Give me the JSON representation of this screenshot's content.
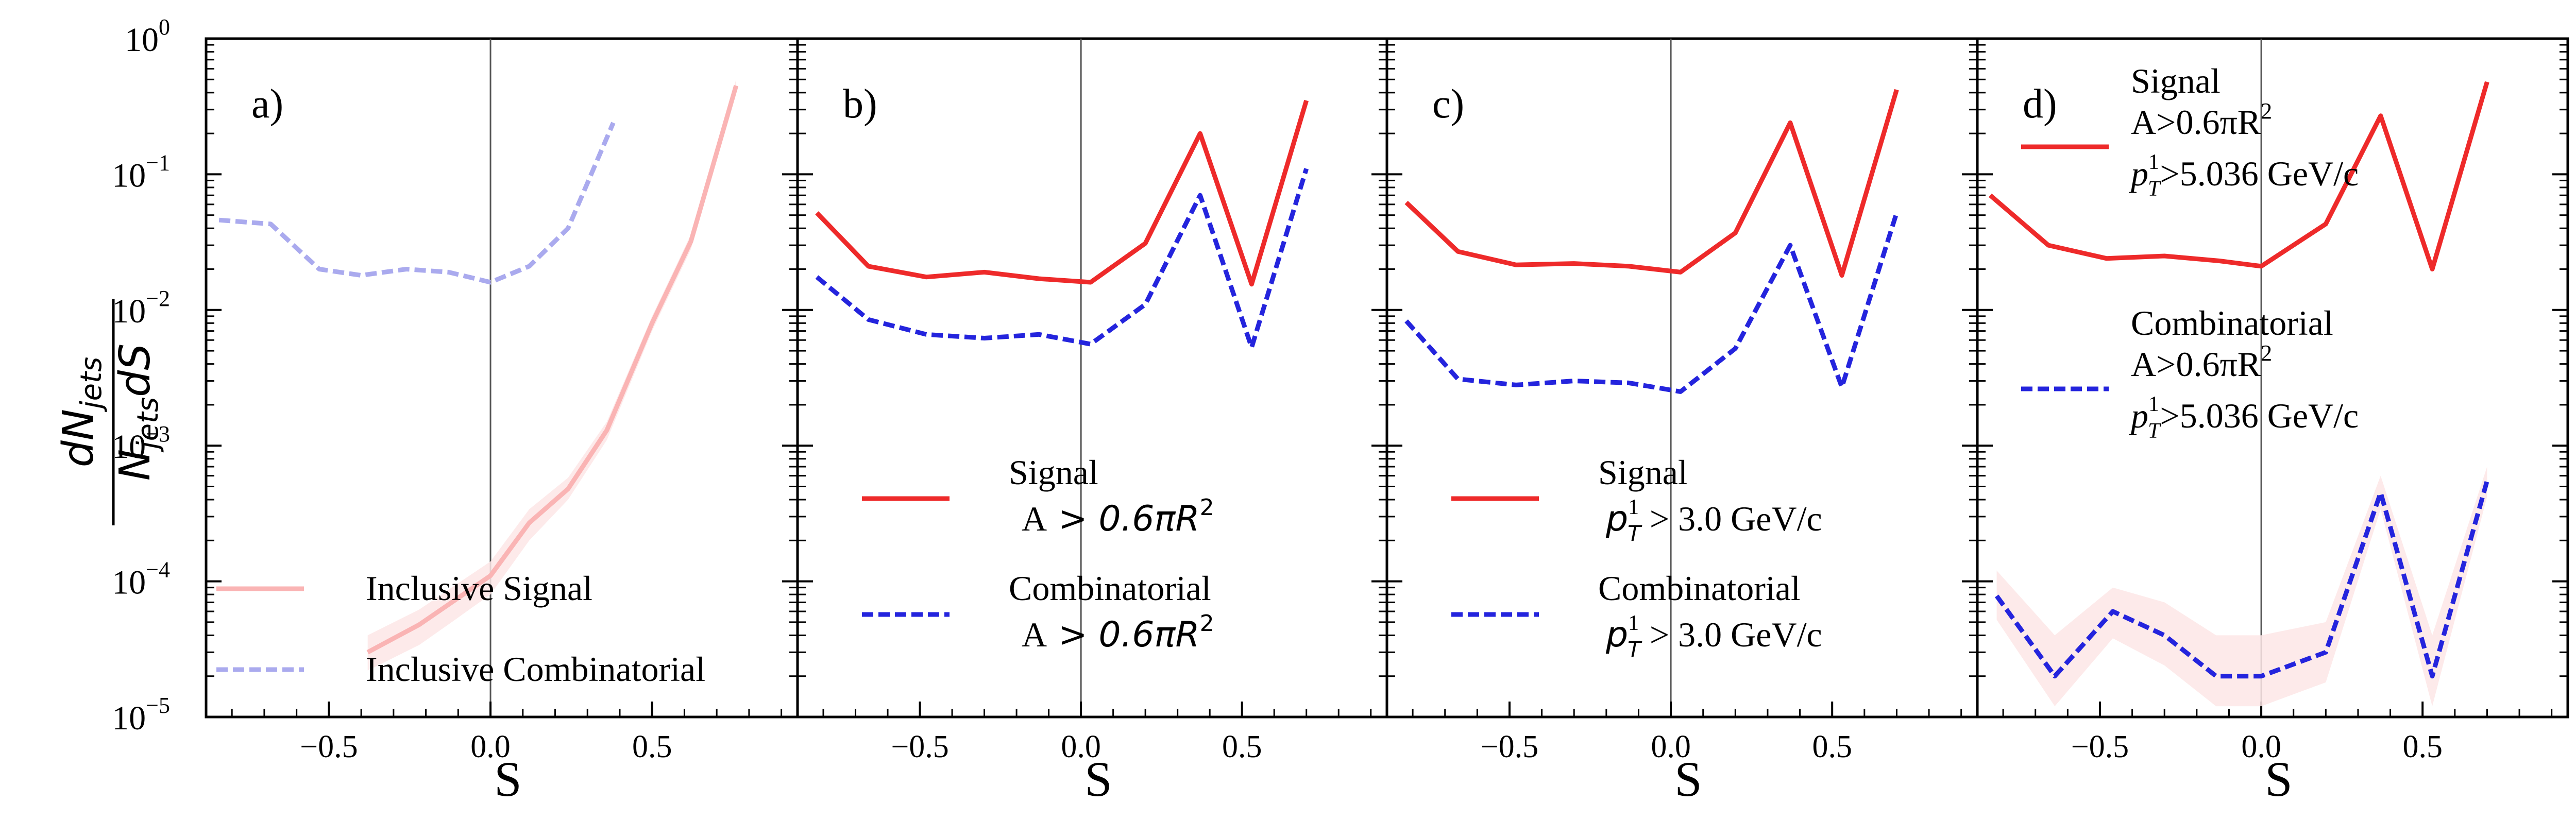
{
  "y_axis": {
    "label": "dN_jets / (N_jets dS)",
    "numerator": "dN",
    "numerator_sub": "jets",
    "den_n": "N",
    "den_sub": "jets",
    "den_ds": "dS",
    "scale": "log",
    "ylim": [
      1e-05,
      1
    ],
    "tick_labels": [
      {
        "value": 1,
        "base": "10",
        "exp": "0"
      },
      {
        "value": 0.1,
        "base": "10",
        "exp": "−1"
      },
      {
        "value": 0.01,
        "base": "10",
        "exp": "−2"
      },
      {
        "value": 0.001,
        "base": "10",
        "exp": "−3"
      },
      {
        "value": 0.0001,
        "base": "10",
        "exp": "−4"
      },
      {
        "value": 1e-05,
        "base": "10",
        "exp": "−5"
      }
    ]
  },
  "x_axis": {
    "label": "S",
    "xlim": [
      -0.88,
      0.95
    ],
    "ticks": [
      {
        "value": -0.5,
        "label": "−0.5"
      },
      {
        "value": 0.0,
        "label": "0.0"
      },
      {
        "value": 0.5,
        "label": "0.5"
      }
    ]
  },
  "colors": {
    "signal": "#ee2a2a",
    "combinatorial": "#2424dd",
    "signal_light": "#fab4b4",
    "combinatorial_light": "#aaaaee",
    "band": "#fde6e6"
  },
  "chart_data": [
    {
      "type": "line",
      "panel_label": "a)",
      "xlabel": "S",
      "yscale": "log",
      "legend_position": "lower-left",
      "series": [
        {
          "name": "Inclusive Signal",
          "legend_label": "Inclusive Signal",
          "color_key": "signal_light",
          "dash": false,
          "x": [
            -0.38,
            -0.22,
            -0.12,
            0.0,
            0.12,
            0.24,
            0.36,
            0.5,
            0.62,
            0.76
          ],
          "y": [
            3e-05,
            4.8e-05,
            7e-05,
            0.00011,
            0.00027,
            0.00048,
            0.0013,
            0.008,
            0.032,
            0.45
          ],
          "band_lo": [
            2.2e-05,
            3.4e-05,
            5e-05,
            8e-05,
            0.0002,
            0.0004,
            0.0011,
            0.007,
            0.028,
            0.4
          ],
          "band_hi": [
            4e-05,
            6.2e-05,
            9e-05,
            0.00014,
            0.00034,
            0.00058,
            0.0015,
            0.009,
            0.036,
            0.5
          ]
        },
        {
          "name": "Inclusive Combinatorial",
          "legend_label": "Inclusive Combinatorial",
          "color_key": "combinatorial_light",
          "dash": true,
          "x": [
            -0.84,
            -0.68,
            -0.53,
            -0.4,
            -0.26,
            -0.13,
            0.0,
            0.12,
            0.24,
            0.38
          ],
          "y": [
            0.046,
            0.043,
            0.02,
            0.018,
            0.02,
            0.019,
            0.016,
            0.021,
            0.04,
            0.24
          ]
        }
      ]
    },
    {
      "type": "line",
      "panel_label": "b)",
      "xlabel": "S",
      "yscale": "log",
      "legend_position": "lower-center",
      "series": [
        {
          "name": "Signal",
          "legend_line1": "Signal",
          "legend_line2_pre": "A",
          "legend_line2_math": " > 0.6πR",
          "legend_sup": "2",
          "color_key": "signal",
          "dash": false,
          "x": [
            -0.82,
            -0.66,
            -0.48,
            -0.3,
            -0.13,
            0.03,
            0.2,
            0.37,
            0.53,
            0.7
          ],
          "y": [
            0.052,
            0.021,
            0.0175,
            0.019,
            0.017,
            0.016,
            0.031,
            0.2,
            0.0155,
            0.35
          ]
        },
        {
          "name": "Combinatorial",
          "legend_line1": "Combinatorial",
          "legend_line2_pre": "A",
          "legend_line2_math": " > 0.6πR",
          "legend_sup": "2",
          "color_key": "combinatorial",
          "dash": true,
          "x": [
            -0.82,
            -0.66,
            -0.48,
            -0.3,
            -0.13,
            0.03,
            0.2,
            0.37,
            0.53,
            0.7
          ],
          "y": [
            0.0175,
            0.0085,
            0.0066,
            0.0062,
            0.0066,
            0.0056,
            0.011,
            0.07,
            0.0053,
            0.11
          ]
        }
      ]
    },
    {
      "type": "line",
      "panel_label": "c)",
      "xlabel": "S",
      "yscale": "log",
      "legend_position": "lower-center",
      "series": [
        {
          "name": "Signal",
          "legend_line1": "Signal",
          "legend_p": "p",
          "legend_p_sup": "1",
          "legend_p_sub": "T",
          "legend_tail": " > 3.0 GeV/c",
          "color_key": "signal",
          "dash": false,
          "x": [
            -0.82,
            -0.66,
            -0.48,
            -0.3,
            -0.13,
            0.03,
            0.2,
            0.37,
            0.53,
            0.7
          ],
          "y": [
            0.062,
            0.027,
            0.0215,
            0.022,
            0.021,
            0.019,
            0.037,
            0.24,
            0.018,
            0.42
          ]
        },
        {
          "name": "Combinatorial",
          "legend_line1": "Combinatorial",
          "legend_p": "p",
          "legend_p_sup": "1",
          "legend_p_sub": "T",
          "legend_tail": " > 3.0 GeV/c",
          "color_key": "combinatorial",
          "dash": true,
          "x": [
            -0.82,
            -0.66,
            -0.48,
            -0.3,
            -0.13,
            0.03,
            0.2,
            0.37,
            0.53,
            0.7
          ],
          "y": [
            0.0083,
            0.0031,
            0.0028,
            0.003,
            0.0029,
            0.0025,
            0.0052,
            0.03,
            0.0027,
            0.052
          ]
        }
      ]
    },
    {
      "type": "line",
      "panel_label": "d)",
      "xlabel": "S",
      "yscale": "log",
      "legend_position": "upper-left",
      "series": [
        {
          "name": "Signal",
          "legend_line1": "Signal",
          "legend_line2_pre": "A",
          "legend_line2_math": ">0.6πR",
          "legend_sup": "2",
          "legend_p": "p",
          "legend_p_sup": "1",
          "legend_p_sub": "T",
          "legend_tail": ">5.036 GeV/c",
          "color_key": "signal",
          "dash": false,
          "x": [
            -0.84,
            -0.66,
            -0.48,
            -0.3,
            -0.13,
            0.0,
            0.2,
            0.37,
            0.53,
            0.7
          ],
          "y": [
            0.07,
            0.03,
            0.024,
            0.025,
            0.023,
            0.021,
            0.043,
            0.27,
            0.02,
            0.48
          ]
        },
        {
          "name": "Combinatorial",
          "legend_line1": "Combinatorial",
          "legend_line2_pre": "A",
          "legend_line2_math": ">0.6πR",
          "legend_sup": "2",
          "legend_p": "p",
          "legend_p_sup": "1",
          "legend_p_sub": "T",
          "legend_tail": ">5.036 GeV/c",
          "color_key": "combinatorial",
          "dash": true,
          "x": [
            -0.82,
            -0.64,
            -0.46,
            -0.3,
            -0.14,
            0.0,
            0.2,
            0.37,
            0.53,
            0.7
          ],
          "y": [
            7.8e-05,
            2e-05,
            6e-05,
            4e-05,
            2e-05,
            2e-05,
            3e-05,
            0.00045,
            2e-05,
            0.00055
          ],
          "band_lo": [
            5.2e-05,
            1.2e-05,
            3.8e-05,
            2.4e-05,
            1.2e-05,
            1.2e-05,
            1.8e-05,
            0.00034,
            1.2e-05,
            0.00042
          ],
          "band_hi": [
            0.00012,
            4e-05,
            9e-05,
            7e-05,
            4e-05,
            4e-05,
            5e-05,
            0.0006,
            4e-05,
            0.0007
          ]
        }
      ]
    }
  ]
}
